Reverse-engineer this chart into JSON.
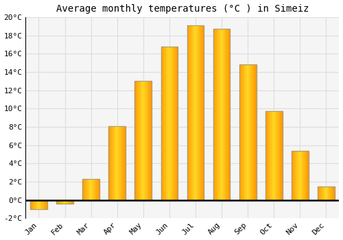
{
  "title": "Average monthly temperatures (°C ) in Simeiz",
  "months": [
    "Jan",
    "Feb",
    "Mar",
    "Apr",
    "May",
    "Jun",
    "Jul",
    "Aug",
    "Sep",
    "Oct",
    "Nov",
    "Dec"
  ],
  "values": [
    -1.0,
    -0.4,
    2.3,
    8.1,
    13.0,
    16.8,
    19.1,
    18.7,
    14.8,
    9.7,
    5.4,
    1.5
  ],
  "bar_color_face": "#FFB319",
  "bar_color_edge": "#999999",
  "ylim": [
    -2,
    20
  ],
  "yticks": [
    -2,
    0,
    2,
    4,
    6,
    8,
    10,
    12,
    14,
    16,
    18,
    20
  ],
  "ytick_labels": [
    "-2°C",
    "0°C",
    "2°C",
    "4°C",
    "6°C",
    "8°C",
    "10°C",
    "12°C",
    "14°C",
    "16°C",
    "18°C",
    "20°C"
  ],
  "background_color": "#ffffff",
  "plot_bg_color": "#f5f5f5",
  "grid_color": "#dddddd",
  "title_fontsize": 10,
  "tick_fontsize": 8,
  "font_family": "monospace"
}
